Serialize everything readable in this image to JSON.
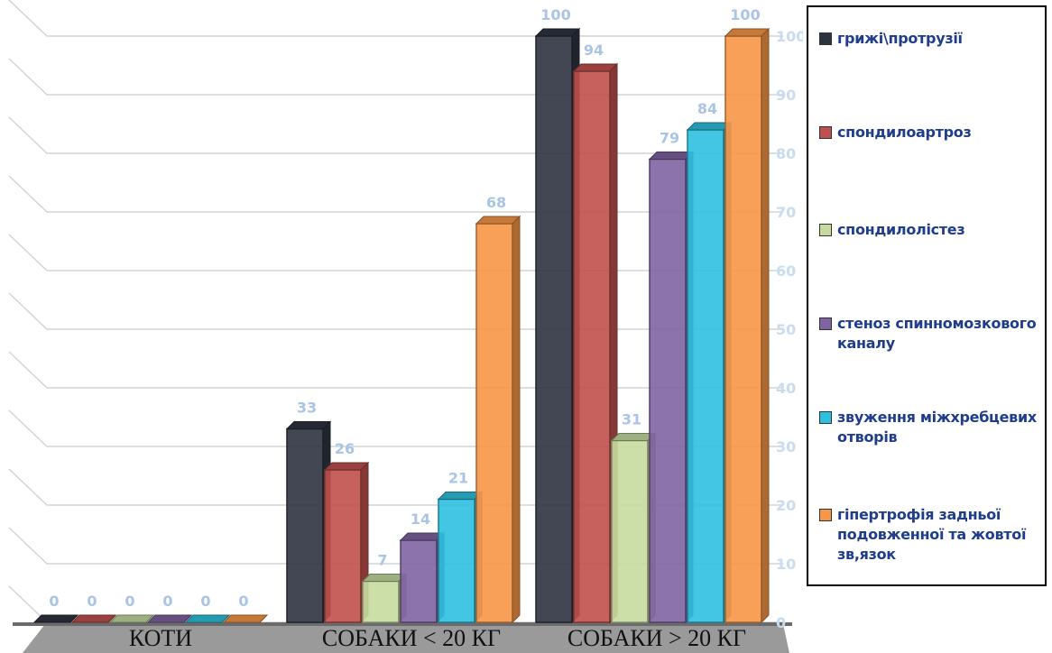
{
  "chart_data": {
    "type": "bar",
    "categories": [
      "КОТИ",
      "СОБАКИ < 20 КГ",
      "СОБАКИ > 20 КГ"
    ],
    "series": [
      {
        "name": "грижі\\протрузії",
        "color": "#2e3340",
        "values": [
          0,
          33,
          100
        ]
      },
      {
        "name": "спондилоартроз",
        "color": "#c0504d",
        "values": [
          0,
          26,
          94
        ]
      },
      {
        "name": "спондилолістез",
        "color": "#c6dba0",
        "values": [
          0,
          7,
          31
        ]
      },
      {
        "name": "стеноз спинномозкового каналу",
        "color": "#8064a2",
        "values": [
          0,
          14,
          79
        ]
      },
      {
        "name": "звуження міжхребцевих отворів",
        "color": "#2ec0e0",
        "values": [
          0,
          21,
          84
        ]
      },
      {
        "name": "гіпертрофія задньої подовженної та жовтої зв,язок",
        "color": "#f79646",
        "values": [
          0,
          68,
          100
        ]
      }
    ],
    "y_ticks": [
      0,
      10,
      20,
      30,
      40,
      50,
      60,
      70,
      80,
      90,
      100
    ],
    "ylim": [
      0,
      100
    ],
    "grid": true,
    "legend": "right",
    "data_labels": true
  }
}
